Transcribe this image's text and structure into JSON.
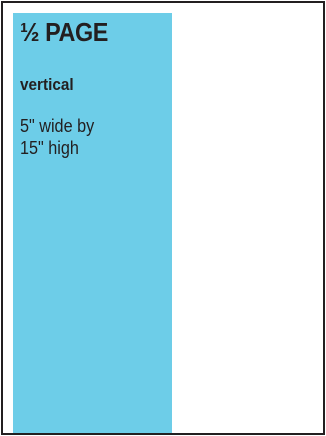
{
  "ad_spec": {
    "size_label": "½ PAGE",
    "orientation": "vertical",
    "dimensions_line1": "5\" wide by",
    "dimensions_line2": "15\" high"
  },
  "colors": {
    "ad_block_fill": "#6dcde8",
    "frame_border": "#231f20",
    "text": "#231f20"
  }
}
